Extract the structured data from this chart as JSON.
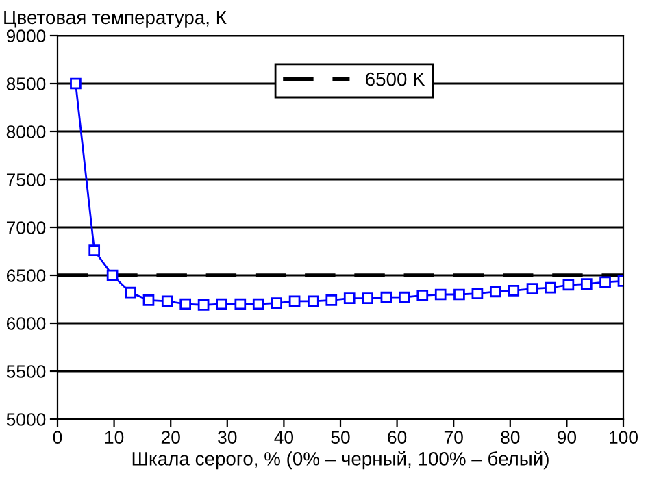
{
  "chart_data": {
    "type": "line",
    "ylabel": "Цветовая температура, К",
    "xlabel": "Шкала серого, % (0% – черный, 100% – белый)",
    "x": [
      3.2,
      6.5,
      9.7,
      12.9,
      16.1,
      19.4,
      22.6,
      25.8,
      29.0,
      32.3,
      35.5,
      38.7,
      41.9,
      45.2,
      48.4,
      51.6,
      54.8,
      58.1,
      61.3,
      64.5,
      67.7,
      71.0,
      74.2,
      77.4,
      80.6,
      83.9,
      87.1,
      90.3,
      93.5,
      96.8,
      100
    ],
    "series": [
      {
        "color": "#0000ff",
        "values": [
          8500,
          6760,
          6500,
          6320,
          6240,
          6230,
          6200,
          6190,
          6200,
          6200,
          6200,
          6210,
          6230,
          6230,
          6240,
          6260,
          6260,
          6270,
          6270,
          6290,
          6300,
          6300,
          6310,
          6330,
          6340,
          6360,
          6370,
          6400,
          6410,
          6430,
          6440
        ]
      }
    ],
    "marker": "square",
    "line_style": "solid",
    "ref_lines": [
      {
        "axis": "y",
        "value": 6500,
        "label": "6500 K",
        "color": "#000000",
        "line_style": "dashed"
      }
    ],
    "xlim": [
      0,
      100
    ],
    "xticks": [
      0,
      10,
      20,
      30,
      40,
      50,
      60,
      70,
      80,
      90,
      100
    ],
    "ylim": [
      5000,
      9000
    ],
    "yticks": [
      5000,
      5500,
      6000,
      6500,
      7000,
      7500,
      8000,
      8500,
      9000
    ],
    "grid": "y",
    "legend": "top right"
  }
}
